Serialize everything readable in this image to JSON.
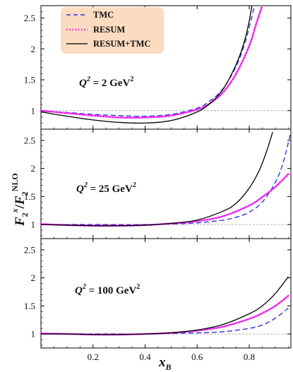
{
  "chart_data": [
    {
      "type": "line",
      "panel_label": {
        "prefix": "Q",
        "sup": "2",
        "mid": " = 2 GeV",
        "sup2": "2"
      },
      "xlim": [
        0,
        0.96
      ],
      "ylim": [
        0.7,
        2.7
      ],
      "yticks": [
        1,
        1.5,
        2,
        2.5
      ],
      "reference_line": 1,
      "legend": {
        "placement": "top-left"
      },
      "series": [
        {
          "name": "TMC",
          "style": "dashed",
          "color": "#3333dd",
          "x": [
            0.0,
            0.1,
            0.2,
            0.3,
            0.4,
            0.5,
            0.6,
            0.65,
            0.7,
            0.75,
            0.78,
            0.8,
            0.82
          ],
          "y": [
            0.99,
            0.97,
            0.94,
            0.92,
            0.91,
            0.94,
            1.04,
            1.16,
            1.36,
            1.72,
            2.05,
            2.35,
            2.7
          ]
        },
        {
          "name": "RESUM",
          "style": "dotted",
          "color": "#ee22ee",
          "x": [
            0.0,
            0.1,
            0.2,
            0.3,
            0.4,
            0.5,
            0.6,
            0.65,
            0.7,
            0.75,
            0.8,
            0.83,
            0.85
          ],
          "y": [
            1.0,
            0.96,
            0.92,
            0.89,
            0.89,
            0.92,
            1.02,
            1.12,
            1.3,
            1.6,
            2.05,
            2.45,
            2.7
          ]
        },
        {
          "name": "RESUM+TMC",
          "style": "solid",
          "color": "#000000",
          "x": [
            0.0,
            0.1,
            0.2,
            0.3,
            0.4,
            0.5,
            0.6,
            0.65,
            0.7,
            0.75,
            0.78,
            0.8,
            0.81
          ],
          "y": [
            0.98,
            0.91,
            0.85,
            0.81,
            0.8,
            0.84,
            0.98,
            1.12,
            1.35,
            1.75,
            2.1,
            2.45,
            2.7
          ]
        }
      ]
    },
    {
      "type": "line",
      "panel_label": {
        "prefix": "Q",
        "sup": "2",
        "mid": " = 25 GeV",
        "sup2": "2"
      },
      "xlim": [
        0,
        0.96
      ],
      "ylim": [
        0.75,
        2.7
      ],
      "yticks": [
        1,
        1.5,
        2,
        2.5
      ],
      "reference_line": 1,
      "series": [
        {
          "name": "TMC",
          "style": "dashed",
          "color": "#3333dd",
          "x": [
            0.0,
            0.1,
            0.2,
            0.3,
            0.4,
            0.5,
            0.6,
            0.7,
            0.75,
            0.8,
            0.85,
            0.9,
            0.93,
            0.96
          ],
          "y": [
            1.0,
            1.0,
            1.0,
            1.0,
            1.0,
            1.01,
            1.03,
            1.08,
            1.13,
            1.22,
            1.4,
            1.75,
            2.1,
            2.65
          ]
        },
        {
          "name": "RESUM",
          "style": "dotted",
          "color": "#ee22ee",
          "x": [
            0.0,
            0.1,
            0.2,
            0.3,
            0.4,
            0.5,
            0.6,
            0.7,
            0.8,
            0.85,
            0.9,
            0.95
          ],
          "y": [
            1.01,
            0.99,
            0.98,
            0.98,
            0.99,
            1.02,
            1.06,
            1.15,
            1.34,
            1.49,
            1.67,
            1.9
          ]
        },
        {
          "name": "RESUM+TMC",
          "style": "solid",
          "color": "#000000",
          "x": [
            0.0,
            0.1,
            0.2,
            0.3,
            0.4,
            0.5,
            0.6,
            0.7,
            0.75,
            0.8,
            0.84,
            0.87,
            0.89
          ],
          "y": [
            1.0,
            0.99,
            0.98,
            0.98,
            0.99,
            1.02,
            1.08,
            1.24,
            1.38,
            1.65,
            1.98,
            2.35,
            2.65
          ]
        }
      ]
    },
    {
      "type": "line",
      "panel_label": {
        "prefix": "Q",
        "sup": "2",
        "mid": " = 100 GeV",
        "sup2": "2"
      },
      "xlim": [
        0,
        0.96
      ],
      "ylim": [
        0.75,
        2.7
      ],
      "yticks": [
        1,
        1.5,
        2,
        2.5
      ],
      "xticks": [
        0.2,
        0.4,
        0.6,
        0.8
      ],
      "reference_line": 1,
      "series": [
        {
          "name": "TMC",
          "style": "dashed",
          "color": "#3333dd",
          "x": [
            0.0,
            0.1,
            0.2,
            0.3,
            0.4,
            0.5,
            0.6,
            0.7,
            0.8,
            0.85,
            0.9,
            0.95
          ],
          "y": [
            1.0,
            1.0,
            1.0,
            1.0,
            1.0,
            1.01,
            1.02,
            1.04,
            1.1,
            1.16,
            1.28,
            1.46
          ]
        },
        {
          "name": "RESUM",
          "style": "dotted",
          "color": "#ee22ee",
          "x": [
            0.0,
            0.1,
            0.2,
            0.3,
            0.4,
            0.5,
            0.6,
            0.7,
            0.8,
            0.85,
            0.9,
            0.95
          ],
          "y": [
            1.01,
            1.0,
            0.99,
            0.99,
            1.0,
            1.02,
            1.06,
            1.13,
            1.27,
            1.37,
            1.5,
            1.68
          ]
        },
        {
          "name": "RESUM+TMC",
          "style": "solid",
          "color": "#000000",
          "x": [
            0.0,
            0.1,
            0.2,
            0.3,
            0.4,
            0.5,
            0.6,
            0.7,
            0.8,
            0.85,
            0.9,
            0.95
          ],
          "y": [
            1.0,
            1.0,
            0.99,
            0.99,
            1.0,
            1.02,
            1.07,
            1.17,
            1.36,
            1.5,
            1.72,
            2.02
          ]
        }
      ]
    }
  ],
  "legend_entries": [
    "TMC",
    "RESUM",
    "RESUM+TMC"
  ],
  "axes": {
    "xlabel": {
      "main": "x",
      "sub": "B"
    },
    "ylabel": {
      "f1": "F",
      "sub1": "2",
      "sup1": "x",
      "slash": "/",
      "f2": "F",
      "sub2": "2",
      "sup2": "NLO"
    }
  },
  "colors": {
    "tmc": "#3333dd",
    "resum": "#ee22ee",
    "resum_tmc": "#000000",
    "legend_bg": "#fbdcc0",
    "reference": "#999999"
  }
}
